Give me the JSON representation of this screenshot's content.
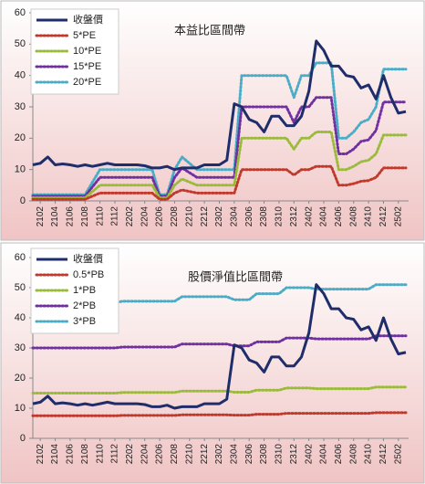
{
  "chart_data": [
    {
      "type": "line",
      "title": "本益比區間帶",
      "categories": [
        null,
        "2102",
        null,
        "2104",
        null,
        "2106",
        null,
        "2108",
        null,
        "2110",
        null,
        "2112",
        null,
        "2202",
        null,
        "2204",
        null,
        "2206",
        null,
        "2208",
        null,
        "2210",
        null,
        "2212",
        null,
        "2302",
        null,
        "2304",
        null,
        "2306",
        null,
        "2308",
        null,
        "2310",
        null,
        "2312",
        null,
        "2402",
        null,
        "2404",
        null,
        "2406",
        null,
        "2408",
        null,
        "2410",
        null,
        "2412",
        null,
        "2502",
        null
      ],
      "ylim": [
        0,
        60
      ],
      "yticks": [
        0,
        10,
        20,
        30,
        40,
        50,
        60
      ],
      "series": [
        {
          "name": "收盤價",
          "color": "#1f2d6b",
          "style": "solid",
          "values": [
            11.5,
            12,
            14,
            11.5,
            11.8,
            11.5,
            11,
            11.5,
            11,
            11.5,
            12,
            11.5,
            11.5,
            11.5,
            11.5,
            11.2,
            10.5,
            10.5,
            11,
            10,
            10.5,
            10.5,
            10.5,
            11.5,
            11.5,
            11.5,
            13,
            31,
            30,
            26,
            25,
            22,
            27,
            27,
            24,
            24,
            27,
            35,
            51,
            48,
            43,
            43,
            40,
            39.5,
            36,
            37,
            32.5,
            40,
            33,
            28,
            28.5
          ]
        },
        {
          "name": "5*PE",
          "color": "#c0392b",
          "style": "dotted",
          "values": [
            0.5,
            0.5,
            0.5,
            0.5,
            0.5,
            0.5,
            0.5,
            0.5,
            1.5,
            2.5,
            2.5,
            2.5,
            2.5,
            2.5,
            2.5,
            2.5,
            2.5,
            0.5,
            0.5,
            2.5,
            3.5,
            3,
            2.5,
            2.5,
            2.5,
            2.5,
            2.5,
            2.5,
            10,
            10,
            10,
            10,
            10,
            10,
            10,
            8.25,
            10,
            10,
            11,
            11,
            11,
            5,
            5,
            5.5,
            6.25,
            6.5,
            7.5,
            10.5,
            10.5,
            10.5,
            10.5
          ]
        },
        {
          "name": "10*PE",
          "color": "#9bbb3b",
          "style": "dotted",
          "values": [
            1,
            1,
            1,
            1,
            1,
            1,
            1,
            1,
            3,
            5,
            5,
            5,
            5,
            5,
            5,
            5,
            5,
            1,
            1,
            5,
            7,
            6,
            5,
            5,
            5,
            5,
            5,
            5,
            20,
            20,
            20,
            20,
            20,
            20,
            20,
            16.5,
            20,
            20,
            22,
            22,
            22,
            10,
            10,
            11,
            12.5,
            13,
            15,
            21,
            21,
            21,
            21
          ]
        },
        {
          "name": "15*PE",
          "color": "#7030a0",
          "style": "dotted",
          "values": [
            1.5,
            1.5,
            1.5,
            1.5,
            1.5,
            1.5,
            1.5,
            1.5,
            4.5,
            7.5,
            7.5,
            7.5,
            7.5,
            7.5,
            7.5,
            7.5,
            7.5,
            1.5,
            1.5,
            7.5,
            10.5,
            9,
            7.5,
            7.5,
            7.5,
            7.5,
            7.5,
            7.5,
            30,
            30,
            30,
            30,
            30,
            30,
            30,
            25,
            30,
            30,
            33,
            33,
            33,
            15,
            15,
            16.5,
            19,
            19.5,
            22.5,
            31.5,
            31.5,
            31.5,
            31.5
          ]
        },
        {
          "name": "20*PE",
          "color": "#4bacc6",
          "style": "dotted",
          "values": [
            2,
            2,
            2,
            2,
            2,
            2,
            2,
            2,
            6,
            10,
            10,
            10,
            10,
            10,
            10,
            10,
            10,
            2,
            2,
            10,
            14,
            12,
            10,
            10,
            10,
            10,
            10,
            10,
            40,
            40,
            40,
            40,
            40,
            40,
            40,
            33,
            40,
            40,
            44,
            44,
            44,
            20,
            20,
            22,
            25,
            26,
            30,
            42,
            42,
            42,
            42
          ]
        }
      ]
    },
    {
      "type": "line",
      "title": "股價淨值比區間帶",
      "categories": [
        null,
        "2102",
        null,
        "2104",
        null,
        "2106",
        null,
        "2108",
        null,
        "2110",
        null,
        "2112",
        null,
        "2202",
        null,
        "2204",
        null,
        "2206",
        null,
        "2208",
        null,
        "2210",
        null,
        "2212",
        null,
        "2302",
        null,
        "2304",
        null,
        "2306",
        null,
        "2308",
        null,
        "2310",
        null,
        "2312",
        null,
        "2402",
        null,
        "2404",
        null,
        "2406",
        null,
        "2408",
        null,
        "2410",
        null,
        "2412",
        null,
        "2502",
        null
      ],
      "ylim": [
        0,
        60
      ],
      "yticks": [
        0,
        10,
        20,
        30,
        40,
        50,
        60
      ],
      "series": [
        {
          "name": "收盤價",
          "color": "#1f2d6b",
          "style": "solid",
          "values": [
            11.5,
            12,
            14,
            11.5,
            11.8,
            11.5,
            11,
            11.5,
            11,
            11.5,
            12,
            11.5,
            11.5,
            11.5,
            11.5,
            11.2,
            10.5,
            10.5,
            11,
            10,
            10.5,
            10.5,
            10.5,
            11.5,
            11.5,
            11.5,
            13,
            31,
            30,
            26,
            25,
            22,
            27,
            27,
            24,
            24,
            27,
            35,
            51,
            48,
            43,
            43,
            40,
            39.5,
            36,
            37,
            32.5,
            40,
            33,
            28,
            28.5
          ]
        },
        {
          "name": "0.5*PB",
          "color": "#c0392b",
          "style": "dotted",
          "values": [
            7.5,
            7.5,
            7.5,
            7.5,
            7.5,
            7.5,
            7.5,
            7.5,
            7.5,
            7.5,
            7.5,
            7.5,
            7.6,
            7.6,
            7.6,
            7.6,
            7.6,
            7.6,
            7.6,
            7.6,
            7.8,
            7.8,
            7.8,
            7.8,
            7.8,
            7.8,
            7.8,
            7.7,
            7.7,
            7.7,
            8,
            8,
            8,
            8,
            8.3,
            8.3,
            8.3,
            8.3,
            8.3,
            8.3,
            8.3,
            8.3,
            8.3,
            8.3,
            8.3,
            8.3,
            8.5,
            8.5,
            8.5,
            8.5,
            8.5
          ]
        },
        {
          "name": "1*PB",
          "color": "#9bbb3b",
          "style": "dotted",
          "values": [
            15,
            15,
            15,
            15,
            15,
            15,
            15,
            15,
            15,
            15,
            15,
            15,
            15.2,
            15.2,
            15.2,
            15.2,
            15.2,
            15.2,
            15.2,
            15.2,
            15.7,
            15.7,
            15.7,
            15.7,
            15.7,
            15.7,
            15.7,
            15.3,
            15.3,
            15.3,
            16,
            16,
            16,
            16,
            16.7,
            16.7,
            16.7,
            16.7,
            16.5,
            16.5,
            16.5,
            16.5,
            16.5,
            16.5,
            16.5,
            16.5,
            17,
            17,
            17,
            17,
            17
          ]
        },
        {
          "name": "2*PB",
          "color": "#7030a0",
          "style": "dotted",
          "values": [
            30,
            30,
            30,
            30,
            30,
            30,
            30,
            30,
            30,
            30,
            30,
            30,
            30.3,
            30.3,
            30.3,
            30.3,
            30.3,
            30.3,
            30.3,
            30.3,
            31.3,
            31.3,
            31.3,
            31.3,
            31.3,
            31.3,
            31.3,
            30.7,
            30.7,
            30.7,
            32,
            32,
            32,
            32,
            33.3,
            33.3,
            33.3,
            33.3,
            33,
            33,
            33,
            33,
            33,
            33,
            33,
            33,
            34,
            34,
            34,
            34,
            34
          ]
        },
        {
          "name": "3*PB",
          "color": "#4bacc6",
          "style": "dotted",
          "values": [
            45,
            45,
            45,
            45,
            45,
            45,
            45,
            45,
            45,
            45,
            45,
            45,
            45.5,
            45.5,
            45.5,
            45.5,
            45.5,
            45.5,
            45.5,
            45.5,
            47,
            47,
            47,
            47,
            47,
            47,
            47,
            46,
            46,
            46,
            48,
            48,
            48,
            48,
            50,
            50,
            50,
            50,
            49.5,
            49.5,
            49.5,
            49.5,
            49.5,
            49.5,
            49.5,
            49.5,
            51,
            51,
            51,
            51,
            51
          ]
        }
      ]
    }
  ]
}
